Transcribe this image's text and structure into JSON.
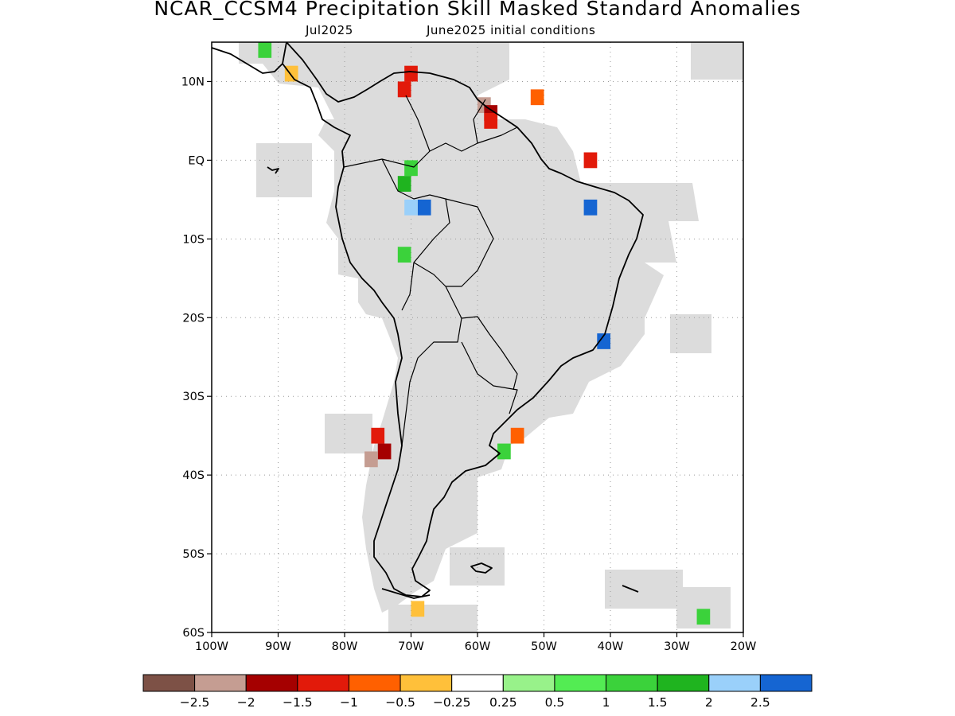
{
  "header": {
    "title": "NCAR_CCSM4 Precipitation Skill Masked Standard Anomalies",
    "target_month": "Jul2025",
    "init": "June2025 initial conditions"
  },
  "map": {
    "lon_range": [
      -100,
      -20
    ],
    "lat_range": [
      -60,
      15
    ],
    "lon_ticks": [
      {
        "v": -100,
        "label": "100W"
      },
      {
        "v": -90,
        "label": "90W"
      },
      {
        "v": -80,
        "label": "80W"
      },
      {
        "v": -70,
        "label": "70W"
      },
      {
        "v": -60,
        "label": "60W"
      },
      {
        "v": -50,
        "label": "50W"
      },
      {
        "v": -40,
        "label": "40W"
      },
      {
        "v": -30,
        "label": "30W"
      },
      {
        "v": -20,
        "label": "20W"
      }
    ],
    "lat_ticks": [
      {
        "v": 10,
        "label": "10N"
      },
      {
        "v": 0,
        "label": "EQ"
      },
      {
        "v": -10,
        "label": "10S"
      },
      {
        "v": -20,
        "label": "20S"
      },
      {
        "v": -30,
        "label": "30S"
      },
      {
        "v": -40,
        "label": "40S"
      },
      {
        "v": -50,
        "label": "50S"
      },
      {
        "v": -60,
        "label": "60S"
      }
    ],
    "gridlines": true,
    "mask_color": "#dcdcdc",
    "coast_color": "#000000"
  },
  "colorbar": {
    "colors": [
      "#7d5146",
      "#c59d92",
      "#a50000",
      "#e21a0a",
      "#ff6000",
      "#ffc03a",
      "#ffffff",
      "#98f28a",
      "#53ec53",
      "#3bd23b",
      "#1fb41f",
      "#9ad0fa",
      "#1565d2"
    ],
    "labels": [
      "−2.5",
      "−2",
      "−1.5",
      "−1",
      "−0.5",
      "−0.25",
      "0.25",
      "0.5",
      "1",
      "1.5",
      "2",
      "2.5"
    ]
  },
  "anomalies": [
    {
      "lon": -70,
      "lat": 11,
      "value": -1.5
    },
    {
      "lon": -71,
      "lat": 9,
      "value": -1.5
    },
    {
      "lon": -59,
      "lat": 7,
      "value": -2.5
    },
    {
      "lon": -58,
      "lat": 6,
      "value": -2
    },
    {
      "lon": -58,
      "lat": 5,
      "value": -1.5
    },
    {
      "lon": -51,
      "lat": 8,
      "value": -1
    },
    {
      "lon": -43,
      "lat": 0,
      "value": -1.5
    },
    {
      "lon": -70,
      "lat": -1,
      "value": 1
    },
    {
      "lon": -71,
      "lat": -3,
      "value": 1.5
    },
    {
      "lon": -68,
      "lat": -6,
      "value": 2.5
    },
    {
      "lon": -70,
      "lat": -6,
      "value": 2
    },
    {
      "lon": -43,
      "lat": -6,
      "value": 2.5
    },
    {
      "lon": -71,
      "lat": -12,
      "value": 1
    },
    {
      "lon": -41,
      "lat": -23,
      "value": 2.5
    },
    {
      "lon": -75,
      "lat": -35,
      "value": -1.5
    },
    {
      "lon": -74,
      "lat": -37,
      "value": -2
    },
    {
      "lon": -76,
      "lat": -38,
      "value": -2.5
    },
    {
      "lon": -56,
      "lat": -37,
      "value": 1
    },
    {
      "lon": -54,
      "lat": -35,
      "value": -1
    },
    {
      "lon": -69,
      "lat": -57,
      "value": -0.5
    },
    {
      "lon": -92,
      "lat": 14,
      "value": 1
    },
    {
      "lon": -88,
      "lat": 11,
      "value": -0.5
    },
    {
      "lon": -26,
      "lat": -58,
      "value": 1
    }
  ]
}
